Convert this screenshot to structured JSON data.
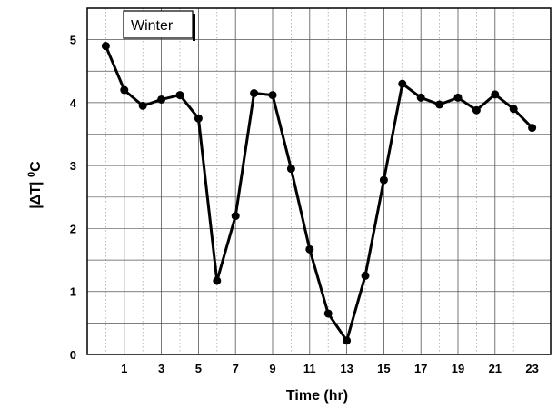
{
  "chart_data": {
    "type": "line",
    "xlabel": "Time (hr)",
    "ylabel_parts": {
      "main": "|ΔT| ",
      "sup": "0",
      "unit": "C"
    },
    "xlim": [
      -1,
      24
    ],
    "ylim": [
      0,
      5.5
    ],
    "x_ticks": [
      1,
      3,
      5,
      7,
      9,
      11,
      13,
      15,
      17,
      19,
      21,
      23
    ],
    "y_ticks": [
      0,
      1,
      2,
      3,
      4,
      5
    ],
    "grid": true,
    "legend_position": "top-left",
    "series": [
      {
        "name": "Winter",
        "color": "#000000",
        "x": [
          0,
          1,
          2,
          3,
          4,
          5,
          6,
          7,
          8,
          9,
          10,
          11,
          12,
          13,
          14,
          15,
          16,
          17,
          18,
          19,
          20,
          21,
          22,
          23
        ],
        "y": [
          4.9,
          4.2,
          3.95,
          4.05,
          4.12,
          3.75,
          1.17,
          2.2,
          4.15,
          4.12,
          2.95,
          1.67,
          0.65,
          0.22,
          1.25,
          2.77,
          4.3,
          4.08,
          3.97,
          4.08,
          3.88,
          4.13,
          3.9,
          3.6
        ]
      }
    ]
  }
}
